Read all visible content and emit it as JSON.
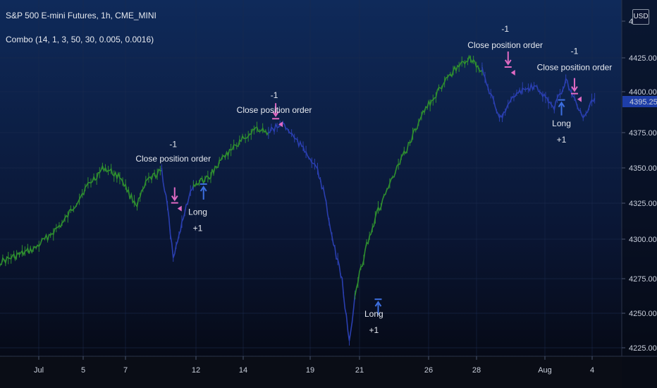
{
  "header": {
    "title": "S&P 500 E-mini Futures, 1h, CME_MINI",
    "indicator": "Combo (14, 1, 3, 50, 30, 0.005, 0.0016)",
    "currency": "USD"
  },
  "colors": {
    "background_top": "#0f2a5a",
    "background_bottom": "#05070f",
    "up_series": "#2f8f2f",
    "down_series": "#2a3fb0",
    "marker": "#e06ac3",
    "price_label": "#1e3ea8",
    "text": "#e6e9ef"
  },
  "chart_data": {
    "type": "line",
    "symbol": "S&P 500 E-mini Futures",
    "timeframe": "1h",
    "x_ticks": [
      "Jul",
      "5",
      "7",
      "12",
      "14",
      "19",
      "21",
      "26",
      "28",
      "Aug",
      "4"
    ],
    "y_ticks": [
      "4225.00",
      "4250.00",
      "4275.00",
      "4300.00",
      "4325.00",
      "4350.00",
      "4375.00",
      "4400.00",
      "4425.00",
      "4"
    ],
    "y_range": [
      4225,
      4450
    ],
    "last_price": "4395.25",
    "series": [
      {
        "name": "",
        "color": "#2f8f2f",
        "x": [
          0.0,
          1.2,
          2.2,
          3.0,
          3.6,
          4.2,
          4.5,
          4.75,
          5.1,
          5.6
        ],
        "y": [
          4283,
          4292,
          4310,
          4334,
          4347,
          4340,
          4328,
          4322,
          4338,
          4345
        ]
      },
      {
        "name": "",
        "color": "#2a3fb0",
        "x": [
          5.6,
          5.8,
          6.0,
          6.2,
          6.4,
          6.7
        ],
        "y": [
          4345,
          4320,
          4286,
          4300,
          4318,
          4335
        ]
      },
      {
        "name": "",
        "color": "#2f8f2f",
        "x": [
          6.7,
          7.2,
          7.8,
          8.5,
          8.9,
          9.3
        ],
        "y": [
          4335,
          4340,
          4355,
          4368,
          4374,
          4371
        ]
      },
      {
        "name": "",
        "color": "#2a3fb0",
        "x": [
          9.3,
          9.8,
          10.4,
          10.9,
          11.2,
          11.5,
          11.85,
          12.1,
          12.3
        ],
        "y": [
          4371,
          4377,
          4362,
          4350,
          4332,
          4300,
          4270,
          4228,
          4262
        ]
      },
      {
        "name": "",
        "color": "#2f8f2f",
        "x": [
          12.3,
          12.7,
          13.1,
          13.6,
          14.1,
          14.7,
          15.3,
          15.7,
          16.2,
          16.7
        ],
        "y": [
          4262,
          4295,
          4318,
          4340,
          4360,
          4386,
          4402,
          4412,
          4421,
          4413
        ]
      },
      {
        "name": "",
        "color": "#2a3fb0",
        "x": [
          16.7,
          17.3,
          17.9,
          18.5,
          19.2,
          19.6,
          20.2,
          20.6
        ],
        "y": [
          4413,
          4380,
          4398,
          4402,
          4388,
          4406,
          4380,
          4394
        ]
      }
    ],
    "annotations": [
      {
        "text": "-1",
        "x": 6.0,
        "y": 4361,
        "role": "signal"
      },
      {
        "text": "Close position order",
        "x": 6.0,
        "y": 4351,
        "role": "label"
      },
      {
        "text": "Long",
        "x": 6.85,
        "y": 4315,
        "role": "label"
      },
      {
        "text": "+1",
        "x": 6.85,
        "y": 4304,
        "role": "signal"
      },
      {
        "text": "-1",
        "x": 9.5,
        "y": 4394,
        "role": "signal"
      },
      {
        "text": "Close position order",
        "x": 9.5,
        "y": 4384,
        "role": "label"
      },
      {
        "text": "Long",
        "x": 12.95,
        "y": 4246,
        "role": "label"
      },
      {
        "text": "+1",
        "x": 12.95,
        "y": 4235,
        "role": "signal"
      },
      {
        "text": "-1",
        "x": 17.5,
        "y": 4439,
        "role": "signal"
      },
      {
        "text": "Close position order",
        "x": 17.5,
        "y": 4428,
        "role": "label"
      },
      {
        "text": "-1",
        "x": 19.9,
        "y": 4424,
        "role": "signal"
      },
      {
        "text": "Close position order",
        "x": 19.9,
        "y": 4413,
        "role": "label"
      },
      {
        "text": "Long",
        "x": 19.45,
        "y": 4375,
        "role": "label"
      },
      {
        "text": "+1",
        "x": 19.45,
        "y": 4364,
        "role": "signal"
      }
    ],
    "markers": [
      {
        "type": "short",
        "x": 6.05,
        "y": 4326
      },
      {
        "type": "long",
        "x": 7.05,
        "y": 4333
      },
      {
        "type": "short",
        "x": 9.55,
        "y": 4383
      },
      {
        "type": "long",
        "x": 13.1,
        "y": 4255
      },
      {
        "type": "short",
        "x": 17.6,
        "y": 4418
      },
      {
        "type": "long",
        "x": 19.45,
        "y": 4390
      },
      {
        "type": "short",
        "x": 19.9,
        "y": 4400
      }
    ],
    "grid": true,
    "legend": "none"
  }
}
